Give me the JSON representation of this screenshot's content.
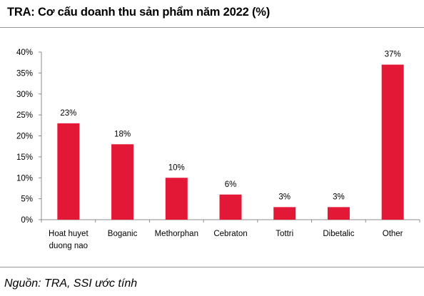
{
  "title": "TRA: Cơ cấu doanh thu sản phẩm năm 2022 (%)",
  "source": "Nguồn: TRA, SSI ước tính",
  "chart_data": {
    "type": "bar",
    "title": "TRA: Cơ cấu doanh thu sản phẩm năm 2022 (%)",
    "categories": [
      [
        "Hoat huyet",
        "duong nao"
      ],
      [
        "Boganic"
      ],
      [
        "Methorphan"
      ],
      [
        "Cebraton"
      ],
      [
        "Tottri"
      ],
      [
        "Dibetalic"
      ],
      [
        "Other"
      ]
    ],
    "values": [
      23,
      18,
      10,
      6,
      3,
      3,
      37
    ],
    "data_labels": [
      "23%",
      "18%",
      "10%",
      "6%",
      "3%",
      "3%",
      "37%"
    ],
    "y_ticks": [
      "0%",
      "5%",
      "10%",
      "15%",
      "20%",
      "25%",
      "30%",
      "35%",
      "40%"
    ],
    "ylim": [
      0,
      40
    ],
    "grid": false,
    "legend": "none",
    "bar_color": "#e31836",
    "xlabel": "",
    "ylabel": ""
  }
}
